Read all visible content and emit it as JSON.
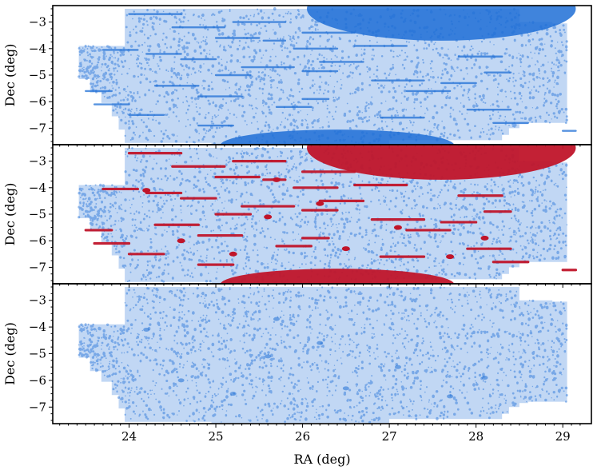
{
  "chart_data": {
    "type": "scatter",
    "figure": "three stacked sky-coverage panels sharing the RA axis",
    "x": {
      "label": "RA (deg)",
      "range": [
        23.12,
        29.33
      ],
      "ticks": [
        24,
        25,
        26,
        27,
        28,
        29
      ],
      "tick_labels": [
        "24",
        "25",
        "26",
        "27",
        "28",
        "29"
      ]
    },
    "colors": {
      "points": "#1f6fd6",
      "flagged": "#c0152a"
    },
    "footprint": [
      [
        23.42,
        -3.9,
        -4.65
      ],
      [
        23.55,
        -3.9,
        -5.15
      ],
      [
        23.68,
        -3.9,
        -5.65
      ],
      [
        23.8,
        -3.9,
        -6.05
      ],
      [
        23.88,
        -3.9,
        -6.55
      ],
      [
        23.95,
        -3.9,
        -7.05
      ],
      [
        24.02,
        -2.5,
        -7.55
      ],
      [
        24.95,
        -2.5,
        -7.55
      ],
      [
        25.5,
        -2.5,
        -7.6
      ],
      [
        27.0,
        -2.5,
        -7.6
      ],
      [
        28.3,
        -2.5,
        -7.45
      ],
      [
        28.38,
        -2.5,
        -7.25
      ],
      [
        28.5,
        -2.5,
        -7.0
      ],
      [
        28.6,
        -3.0,
        -6.85
      ],
      [
        28.75,
        -3.0,
        -6.8
      ],
      [
        28.88,
        -3.0,
        -6.8
      ],
      [
        29.05,
        -3.05,
        -6.8
      ]
    ],
    "panels": [
      {
        "ylabel": "Dec (deg)",
        "y_ticks": [
          -3,
          -4,
          -5,
          -6,
          -7
        ],
        "y_tick_labels": [
          "−3",
          "−4",
          "−5",
          "−6",
          "−7"
        ],
        "ylim": [
          -7.62,
          -2.38
        ],
        "highlight_color": "#1f6fd6",
        "show_x_labels": false
      },
      {
        "ylabel": "Dec (deg)",
        "y_ticks": [
          -3,
          -4,
          -5,
          -6,
          -7
        ],
        "y_tick_labels": [
          "−3",
          "−4",
          "−5",
          "−6",
          "−7"
        ],
        "ylim": [
          -7.62,
          -2.38
        ],
        "highlight_color": "#c0152a",
        "show_x_labels": false
      },
      {
        "ylabel": "Dec (deg)",
        "y_ticks": [
          -3,
          -4,
          -5,
          -6,
          -7
        ],
        "y_tick_labels": [
          "−3",
          "−4",
          "−5",
          "−6",
          "−7"
        ],
        "ylim": [
          -7.62,
          -2.38
        ],
        "highlight_color": null,
        "show_x_labels": true
      }
    ],
    "dense_regions": [
      {
        "shape": "ellipse",
        "cx": 27.6,
        "cy": -2.5,
        "rx": 1.55,
        "ry": 1.2
      },
      {
        "shape": "ellipse",
        "cx": 26.4,
        "cy": -7.65,
        "rx": 1.35,
        "ry": 0.6
      }
    ],
    "streaks": [
      [
        24.0,
        24.6,
        -2.7
      ],
      [
        25.2,
        25.8,
        -3.0
      ],
      [
        24.5,
        25.1,
        -3.2
      ],
      [
        26.0,
        26.6,
        -3.4
      ],
      [
        25.0,
        25.5,
        -3.6
      ],
      [
        25.55,
        25.8,
        -3.7
      ],
      [
        26.6,
        27.2,
        -3.9
      ],
      [
        25.9,
        26.4,
        -4.0
      ],
      [
        23.7,
        24.1,
        -4.05
      ],
      [
        24.2,
        24.6,
        -4.2
      ],
      [
        27.8,
        28.3,
        -4.3
      ],
      [
        24.6,
        25.0,
        -4.4
      ],
      [
        26.2,
        26.7,
        -4.5
      ],
      [
        25.3,
        25.9,
        -4.7
      ],
      [
        26.0,
        26.4,
        -4.85
      ],
      [
        28.1,
        28.4,
        -4.9
      ],
      [
        25.0,
        25.4,
        -5.0
      ],
      [
        26.8,
        27.4,
        -5.2
      ],
      [
        27.6,
        28.0,
        -5.3
      ],
      [
        24.3,
        24.8,
        -5.4
      ],
      [
        23.5,
        23.8,
        -5.6
      ],
      [
        27.2,
        27.7,
        -5.6
      ],
      [
        24.8,
        25.3,
        -5.8
      ],
      [
        26.0,
        26.3,
        -5.9
      ],
      [
        23.6,
        24.0,
        -6.1
      ],
      [
        25.7,
        26.1,
        -6.2
      ],
      [
        27.9,
        28.4,
        -6.3
      ],
      [
        24.0,
        24.4,
        -6.5
      ],
      [
        26.9,
        27.4,
        -6.6
      ],
      [
        28.2,
        28.6,
        -6.8
      ],
      [
        24.8,
        25.2,
        -6.9
      ],
      [
        29.0,
        29.15,
        -7.1
      ]
    ],
    "flagged_spots": [
      [
        25.7,
        -3.7
      ],
      [
        26.2,
        -4.6
      ],
      [
        25.6,
        -5.1
      ],
      [
        27.1,
        -5.5
      ],
      [
        24.6,
        -6.0
      ],
      [
        26.5,
        -6.3
      ],
      [
        27.7,
        -6.6
      ],
      [
        28.1,
        -5.9
      ],
      [
        25.2,
        -6.5
      ],
      [
        24.2,
        -4.1
      ]
    ]
  }
}
